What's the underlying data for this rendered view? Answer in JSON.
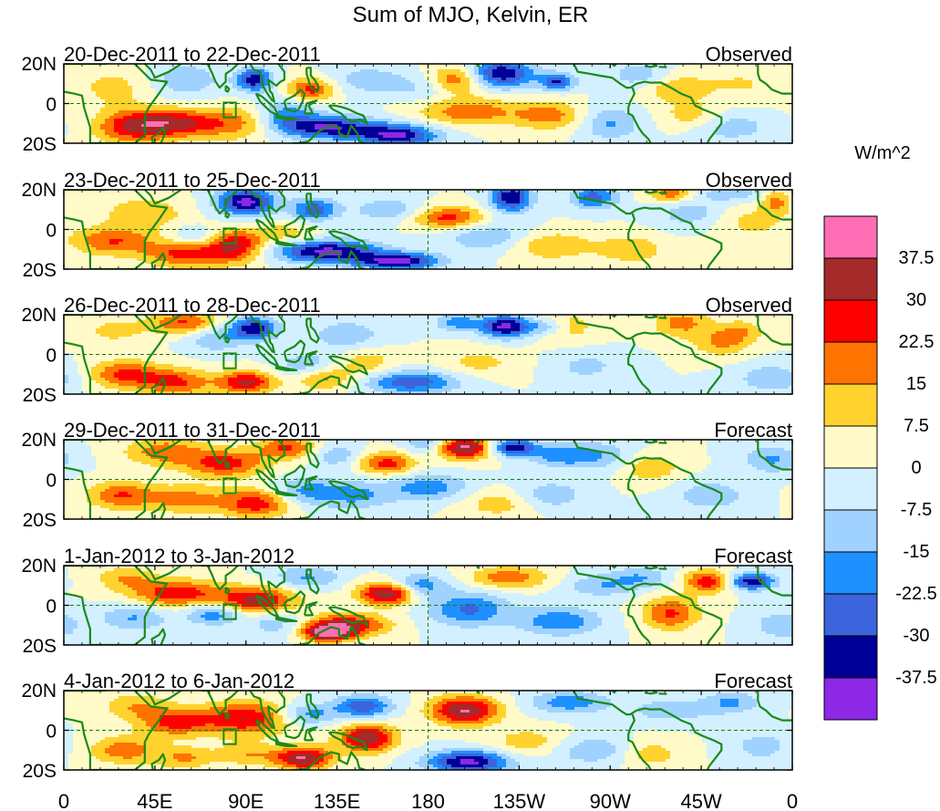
{
  "title": "Sum of MJO, Kelvin, ER",
  "unit_label": "W/m^2",
  "lat_labels": [
    "20N",
    "0",
    "20S"
  ],
  "lon_labels": [
    "0",
    "45E",
    "90E",
    "135E",
    "180",
    "135W",
    "90W",
    "45W",
    "0"
  ],
  "panels": [
    {
      "dates": "20-Dec-2011 to 22-Dec-2011",
      "status": "Observed",
      "seed": 1
    },
    {
      "dates": "23-Dec-2011 to 25-Dec-2011",
      "status": "Observed",
      "seed": 2
    },
    {
      "dates": "26-Dec-2011 to 28-Dec-2011",
      "status": "Observed",
      "seed": 3
    },
    {
      "dates": "29-Dec-2011 to 31-Dec-2011",
      "status": "Forecast",
      "seed": 4
    },
    {
      "dates": "1-Jan-2012 to 3-Jan-2012",
      "status": "Forecast",
      "seed": 5
    },
    {
      "dates": "4-Jan-2012 to 6-Jan-2012",
      "status": "Forecast",
      "seed": 6
    }
  ],
  "colorbar": {
    "labels": [
      "37.5",
      "30",
      "22.5",
      "15",
      "7.5",
      "0",
      "-7.5",
      "-15",
      "-22.5",
      "-30",
      "-37.5"
    ],
    "colors": [
      "#ff6eb4",
      "#a52a2a",
      "#ff0000",
      "#ff7300",
      "#ffd22d",
      "#fffac8",
      "#d2f0ff",
      "#a0d2ff",
      "#1e90ff",
      "#3c64dc",
      "#000096",
      "#8c28e6"
    ]
  }
}
